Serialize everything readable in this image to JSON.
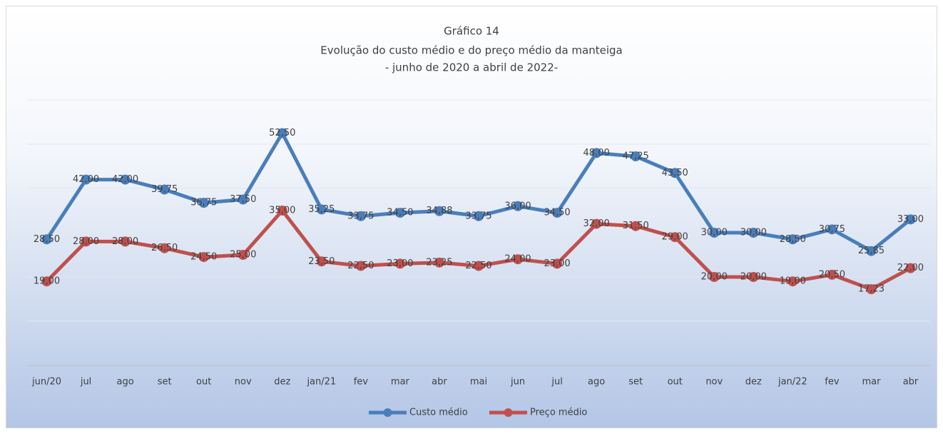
{
  "chart_data": {
    "type": "line",
    "title": "Gráfico 14",
    "subtitle": [
      "Evolução do custo médio e do preço médio da manteiga",
      "- junho de 2020 a abril de 2022-"
    ],
    "categories": [
      "jun/20",
      "jul",
      "ago",
      "set",
      "out",
      "nov",
      "dez",
      "jan/21",
      "fev",
      "mar",
      "abr",
      "mai",
      "jun",
      "jul",
      "ago",
      "set",
      "out",
      "nov",
      "dez",
      "jan/22",
      "fev",
      "mar",
      "abr"
    ],
    "series": [
      {
        "name": "Custo médio",
        "color": "#4a7ebb",
        "values": [
          28.5,
          42,
          42,
          39.75,
          36.75,
          37.5,
          52.5,
          35.25,
          33.75,
          34.5,
          34.88,
          33.75,
          36,
          34.5,
          48,
          47.25,
          43.5,
          30,
          30,
          28.5,
          30.75,
          25.85,
          33
        ],
        "value_labels": [
          "28,50",
          "42,00",
          "42,00",
          "39,75",
          "36,75",
          "37,50",
          "52,50",
          "35,25",
          "33,75",
          "34,50",
          "34,88",
          "33,75",
          "36,00",
          "34,50",
          "48,00",
          "47,25",
          "43,50",
          "30,00",
          "30,00",
          "28,50",
          "30,75",
          "25,85",
          "33,00"
        ]
      },
      {
        "name": "Preço médio",
        "color": "#c0504d",
        "values": [
          19,
          28,
          28,
          26.5,
          24.5,
          25,
          35,
          23.5,
          22.5,
          23,
          23.25,
          22.5,
          24,
          23,
          32,
          31.5,
          29,
          20,
          20,
          19,
          20.5,
          17.23,
          22
        ],
        "value_labels": [
          "19,00",
          "28,00",
          "28,00",
          "26,50",
          "24,50",
          "25,00",
          "35,00",
          "23,50",
          "22,50",
          "23,00",
          "23,25",
          "22,50",
          "24,00",
          "23,00",
          "32,00",
          "31,50",
          "29,00",
          "20,00",
          "20,00",
          "19,00",
          "20,50",
          "17,23",
          "22,00"
        ]
      }
    ],
    "ylim": [
      0,
      60
    ],
    "yticks": [
      0,
      10,
      20,
      30,
      40,
      50,
      60
    ],
    "grid": true,
    "legend": "bottom"
  }
}
